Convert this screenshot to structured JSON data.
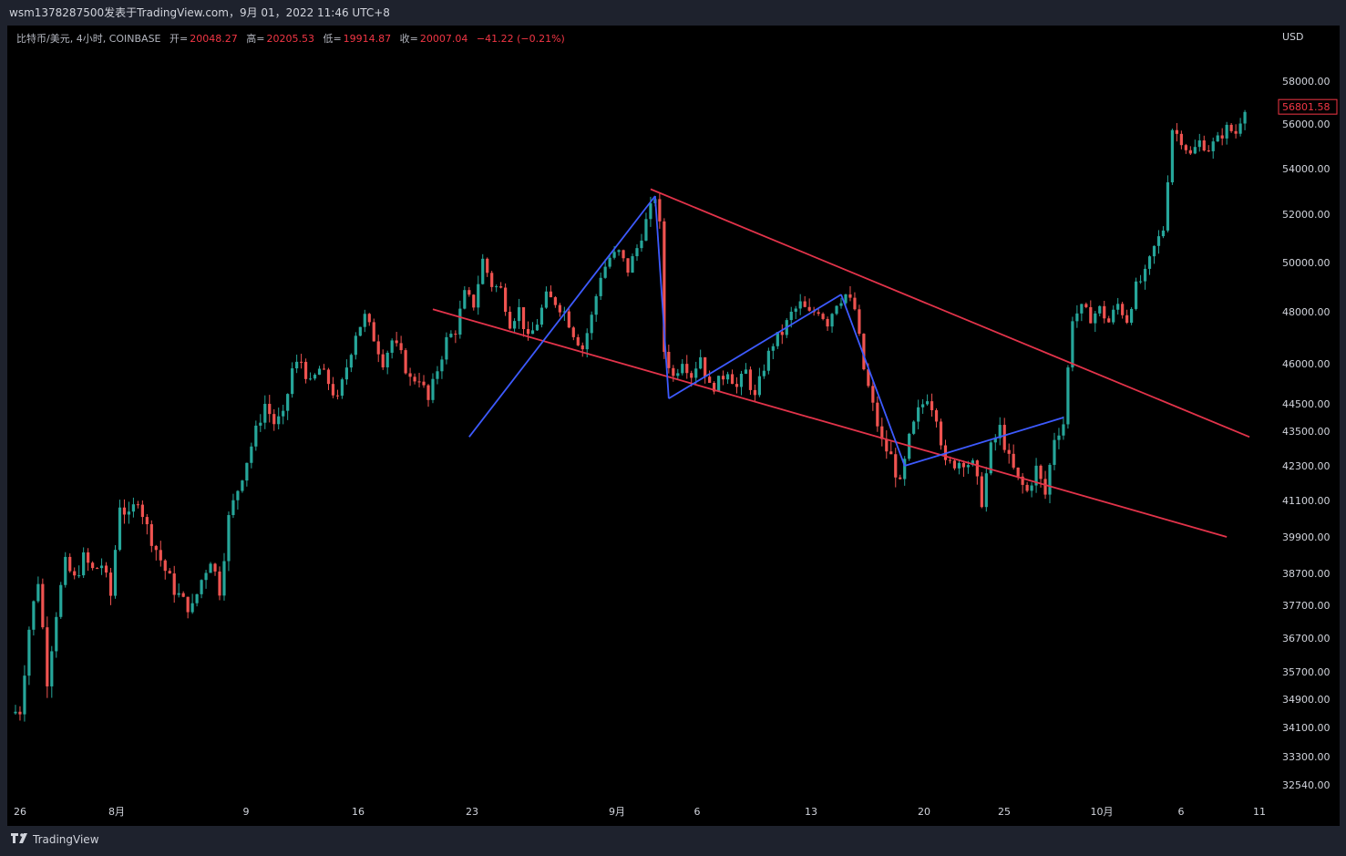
{
  "header": {
    "title": "wsm1378287500发表于TradingView.com，9月 01，2022 11:46 UTC+8"
  },
  "legend": {
    "symbol": "比特币/美元, 4小时, COINBASE",
    "open_label": "开=",
    "open": "20048.27",
    "high_label": "高=",
    "high": "20205.53",
    "low_label": "低=",
    "low": "19914.87",
    "close_label": "收=",
    "close": "20007.04",
    "change": "−41.22 (−0.21%)"
  },
  "footer": {
    "brand": "TradingView"
  },
  "chart_data": {
    "type": "candlestick",
    "currency_label": "USD",
    "last_price": "56801.58",
    "y_ticks": [
      "58000.00",
      "56000.00",
      "54000.00",
      "52000.00",
      "50000.00",
      "48000.00",
      "46000.00",
      "44500.00",
      "43500.00",
      "42300.00",
      "41100.00",
      "39900.00",
      "38700.00",
      "37700.00",
      "36700.00",
      "35700.00",
      "34900.00",
      "34100.00",
      "33300.00",
      "32540.00"
    ],
    "x_ticks": [
      "26",
      "8月",
      "9",
      "16",
      "23",
      "9月",
      "6",
      "13",
      "20",
      "25",
      "10月",
      "6",
      "11"
    ],
    "ylim": [
      32540,
      58000
    ],
    "colors": {
      "up": "#26a69a",
      "down": "#ef5350",
      "trendline_red": "#e2334a",
      "trendline_blue": "#3d5afe"
    },
    "price_path": [
      [
        0,
        34500
      ],
      [
        2,
        34600
      ],
      [
        4,
        37000
      ],
      [
        6,
        38500
      ],
      [
        8,
        35500
      ],
      [
        10,
        37500
      ],
      [
        12,
        39000
      ],
      [
        14,
        38500
      ],
      [
        16,
        39200
      ],
      [
        18,
        38800
      ],
      [
        20,
        39000
      ],
      [
        22,
        38000
      ],
      [
        24,
        41000
      ],
      [
        26,
        40500
      ],
      [
        28,
        41200
      ],
      [
        30,
        40200
      ],
      [
        32,
        39500
      ],
      [
        34,
        38800
      ],
      [
        36,
        38200
      ],
      [
        38,
        37800
      ],
      [
        40,
        37600
      ],
      [
        42,
        38500
      ],
      [
        44,
        39200
      ],
      [
        46,
        38200
      ],
      [
        48,
        40500
      ],
      [
        50,
        41500
      ],
      [
        52,
        42500
      ],
      [
        54,
        43500
      ],
      [
        56,
        44500
      ],
      [
        58,
        43800
      ],
      [
        60,
        44000
      ],
      [
        62,
        45800
      ],
      [
        64,
        46100
      ],
      [
        66,
        45200
      ],
      [
        68,
        45800
      ],
      [
        70,
        45300
      ],
      [
        72,
        44600
      ],
      [
        74,
        45900
      ],
      [
        76,
        47200
      ],
      [
        78,
        47800
      ],
      [
        80,
        47000
      ],
      [
        82,
        46100
      ],
      [
        84,
        46900
      ],
      [
        86,
        46300
      ],
      [
        88,
        45400
      ],
      [
        90,
        45500
      ],
      [
        92,
        44600
      ],
      [
        94,
        45800
      ],
      [
        96,
        46900
      ],
      [
        98,
        47300
      ],
      [
        100,
        48700
      ],
      [
        102,
        48300
      ],
      [
        104,
        50100
      ],
      [
        106,
        49100
      ],
      [
        108,
        48900
      ],
      [
        110,
        47600
      ],
      [
        112,
        48100
      ],
      [
        114,
        46900
      ],
      [
        116,
        47600
      ],
      [
        118,
        48600
      ],
      [
        120,
        48400
      ],
      [
        122,
        48000
      ],
      [
        124,
        47200
      ],
      [
        126,
        46600
      ],
      [
        128,
        47800
      ],
      [
        130,
        49500
      ],
      [
        132,
        50200
      ],
      [
        134,
        50400
      ],
      [
        136,
        49700
      ],
      [
        138,
        50600
      ],
      [
        140,
        51700
      ],
      [
        142,
        52800
      ],
      [
        143,
        51500
      ],
      [
        144,
        46500
      ],
      [
        146,
        45500
      ],
      [
        148,
        46200
      ],
      [
        150,
        45600
      ],
      [
        152,
        46300
      ],
      [
        154,
        45100
      ],
      [
        156,
        45300
      ],
      [
        158,
        45800
      ],
      [
        160,
        45100
      ],
      [
        162,
        45700
      ],
      [
        164,
        44700
      ],
      [
        166,
        45900
      ],
      [
        168,
        46800
      ],
      [
        170,
        47200
      ],
      [
        172,
        47900
      ],
      [
        174,
        48300
      ],
      [
        176,
        47900
      ],
      [
        178,
        48100
      ],
      [
        180,
        47600
      ],
      [
        182,
        48400
      ],
      [
        184,
        48700
      ],
      [
        186,
        48100
      ],
      [
        188,
        45800
      ],
      [
        190,
        44400
      ],
      [
        192,
        43100
      ],
      [
        194,
        42600
      ],
      [
        196,
        41600
      ],
      [
        198,
        43200
      ],
      [
        200,
        44200
      ],
      [
        202,
        44800
      ],
      [
        204,
        44100
      ],
      [
        206,
        42300
      ],
      [
        208,
        42400
      ],
      [
        210,
        42500
      ],
      [
        212,
        42300
      ],
      [
        214,
        41100
      ],
      [
        216,
        42900
      ],
      [
        218,
        43600
      ],
      [
        220,
        42500
      ],
      [
        222,
        41800
      ],
      [
        224,
        41400
      ],
      [
        226,
        42200
      ],
      [
        228,
        41300
      ],
      [
        230,
        43300
      ],
      [
        232,
        43800
      ],
      [
        234,
        47800
      ],
      [
        236,
        48100
      ],
      [
        238,
        47800
      ],
      [
        240,
        48100
      ],
      [
        242,
        47600
      ],
      [
        244,
        48300
      ],
      [
        246,
        47700
      ],
      [
        248,
        49000
      ],
      [
        250,
        49500
      ],
      [
        252,
        50600
      ],
      [
        254,
        51400
      ],
      [
        256,
        55800
      ],
      [
        258,
        55300
      ],
      [
        260,
        54600
      ],
      [
        262,
        55200
      ],
      [
        264,
        54900
      ],
      [
        266,
        55300
      ],
      [
        268,
        55800
      ],
      [
        270,
        55600
      ],
      [
        272,
        56801.58
      ]
    ],
    "trendlines": [
      {
        "color": "red",
        "from": [
          141,
          53100
        ],
        "to": [
          273,
          43300
        ]
      },
      {
        "color": "red",
        "from": [
          93,
          48100
        ],
        "to": [
          268,
          39900
        ]
      },
      {
        "color": "blue",
        "from": [
          101,
          43300
        ],
        "to": [
          142,
          52800
        ]
      },
      {
        "color": "blue",
        "from": [
          142,
          52800
        ],
        "to": [
          145,
          44700
        ]
      },
      {
        "color": "blue",
        "from": [
          145,
          44700
        ],
        "to": [
          183,
          48700
        ]
      },
      {
        "color": "blue",
        "from": [
          183,
          48700
        ],
        "to": [
          197,
          42300
        ]
      },
      {
        "color": "blue",
        "from": [
          197,
          42300
        ],
        "to": [
          232,
          44000
        ]
      }
    ]
  }
}
